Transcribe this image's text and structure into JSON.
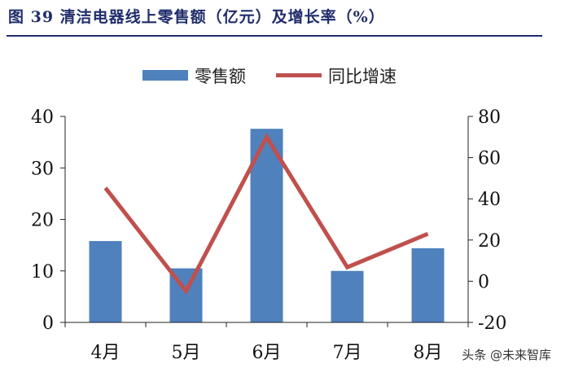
{
  "figure": {
    "title": "图 39 清洁电器线上零售额（亿元）及增长率（%）"
  },
  "watermark": "头条 @未来智库",
  "colors": {
    "bar": "#4f81bd",
    "line": "#c0504d",
    "title": "#1f2d6b"
  },
  "chart_data": {
    "type": "bar",
    "categories": [
      "4月",
      "5月",
      "6月",
      "7月",
      "8月"
    ],
    "series": [
      {
        "name": "零售额",
        "type": "bar",
        "axis": "left",
        "values": [
          15.8,
          10.5,
          37.6,
          10.0,
          14.4
        ]
      },
      {
        "name": "同比增速",
        "type": "line",
        "axis": "right",
        "values": [
          45.3,
          -4.8,
          70.0,
          6.8,
          23.0
        ]
      }
    ],
    "y_left": {
      "min": 0,
      "max": 40,
      "ticks": [
        0,
        10,
        20,
        30,
        40
      ]
    },
    "y_right": {
      "min": -20,
      "max": 80,
      "ticks": [
        -20,
        0,
        20,
        40,
        60,
        80
      ]
    },
    "legend_position": "top-center",
    "grid": false
  }
}
